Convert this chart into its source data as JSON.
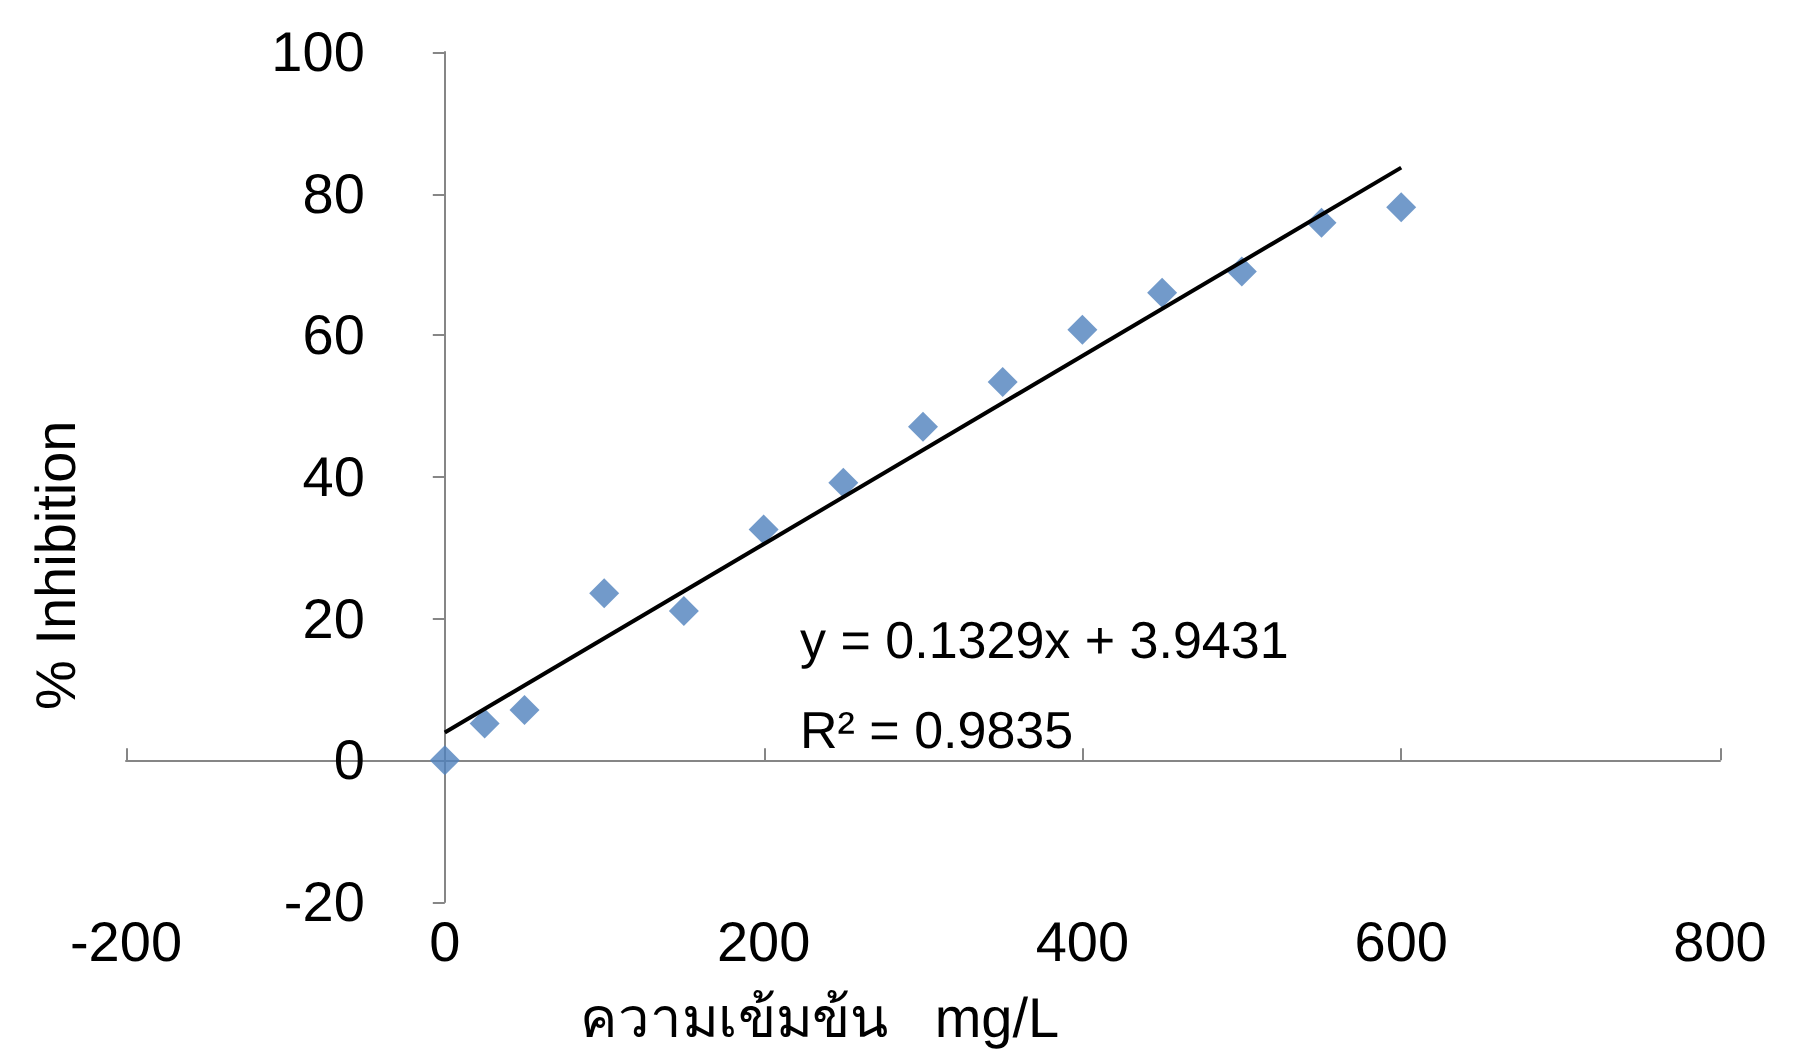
{
  "chart_data": {
    "type": "scatter",
    "xlabel": "ความเข้มข้น   mg/L",
    "ylabel": "% Inhibition",
    "x": [
      0,
      25,
      50,
      100,
      150,
      200,
      250,
      300,
      350,
      400,
      450,
      500,
      550,
      600
    ],
    "series": [
      {
        "color": "#4f81bd",
        "marker": "diamond",
        "values": [
          0,
          5.2,
          7.1,
          23.6,
          21.1,
          32.6,
          39.2,
          47.1,
          53.4,
          60.8,
          66.0,
          69.0,
          75.9,
          78.1
        ]
      },
      {
        "type": "line",
        "color": "#000000",
        "x": [
          0,
          600
        ],
        "values": [
          3.94,
          83.68
        ]
      }
    ],
    "xlim": [
      -200,
      800
    ],
    "xticks": [
      -200,
      0,
      200,
      400,
      600,
      800
    ],
    "ylim": [
      -20,
      100
    ],
    "yticks": [
      -20,
      0,
      20,
      40,
      60,
      80,
      100
    ],
    "annotations": [
      "y = 0.1329x + 3.9431",
      "R² = 0.9835"
    ]
  }
}
